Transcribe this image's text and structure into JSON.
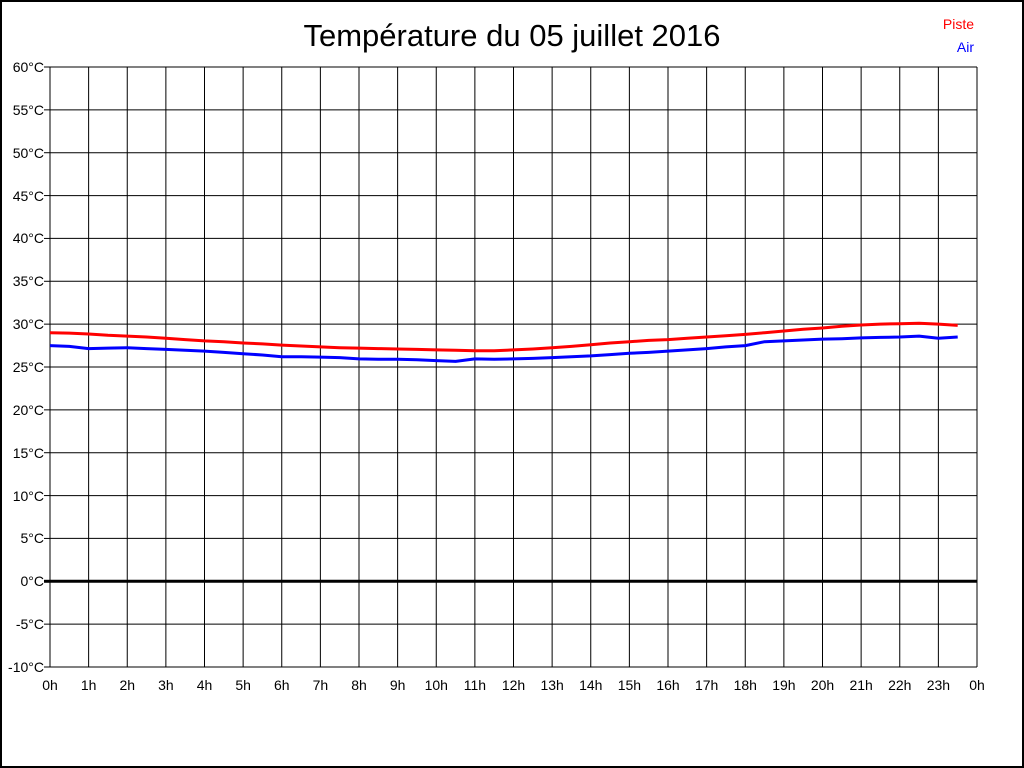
{
  "chart_data": {
    "type": "line",
    "title": "Température du 05 juillet 2016",
    "xlabel": "",
    "ylabel": "",
    "x_unit": "hours",
    "xlim": [
      0,
      24
    ],
    "ylim": [
      -10,
      60
    ],
    "ytick_step": 5,
    "grid": true,
    "zero_line": true,
    "legend_position": "top-right",
    "axis_color": "#000000",
    "xtick_labels": [
      "0h",
      "1h",
      "2h",
      "3h",
      "4h",
      "5h",
      "6h",
      "7h",
      "8h",
      "9h",
      "10h",
      "11h",
      "12h",
      "13h",
      "14h",
      "15h",
      "16h",
      "17h",
      "18h",
      "19h",
      "20h",
      "21h",
      "22h",
      "23h",
      "0h"
    ],
    "ytick_labels": [
      "60°C",
      "55°C",
      "50°C",
      "45°C",
      "40°C",
      "35°C",
      "30°C",
      "25°C",
      "20°C",
      "15°C",
      "10°C",
      "5°C",
      "0°C",
      "-5°C",
      "-10°C"
    ],
    "x": [
      0,
      0.5,
      1,
      1.5,
      2,
      2.5,
      3,
      3.5,
      4,
      4.5,
      5,
      5.5,
      6,
      6.5,
      7,
      7.5,
      8,
      8.5,
      9,
      9.5,
      10,
      10.5,
      11,
      11.5,
      12,
      12.5,
      13,
      13.5,
      14,
      14.5,
      15,
      15.5,
      16,
      16.5,
      17,
      17.5,
      18,
      18.5,
      19,
      19.5,
      20,
      20.5,
      21,
      21.5,
      22,
      22.5,
      23,
      23.5
    ],
    "series": [
      {
        "name": "Piste",
        "color": "#ff0000",
        "values": [
          29.0,
          28.95,
          28.85,
          28.7,
          28.6,
          28.5,
          28.35,
          28.2,
          28.05,
          27.95,
          27.8,
          27.7,
          27.55,
          27.45,
          27.35,
          27.25,
          27.2,
          27.15,
          27.1,
          27.05,
          27.0,
          26.95,
          26.9,
          26.9,
          27.0,
          27.1,
          27.25,
          27.4,
          27.6,
          27.8,
          27.95,
          28.1,
          28.2,
          28.35,
          28.5,
          28.65,
          28.8,
          29.0,
          29.2,
          29.4,
          29.55,
          29.75,
          29.9,
          30.0,
          30.05,
          30.1,
          30.0,
          29.85
        ]
      },
      {
        "name": "Air",
        "color": "#0000ff",
        "values": [
          27.5,
          27.4,
          27.15,
          27.2,
          27.25,
          27.15,
          27.05,
          26.95,
          26.85,
          26.7,
          26.55,
          26.4,
          26.2,
          26.2,
          26.15,
          26.1,
          25.95,
          25.9,
          25.9,
          25.85,
          25.75,
          25.65,
          25.95,
          25.9,
          25.95,
          26.0,
          26.1,
          26.2,
          26.3,
          26.45,
          26.6,
          26.7,
          26.85,
          27.0,
          27.15,
          27.35,
          27.5,
          27.95,
          28.05,
          28.15,
          28.25,
          28.3,
          28.4,
          28.45,
          28.5,
          28.6,
          28.35,
          28.5
        ]
      }
    ]
  }
}
